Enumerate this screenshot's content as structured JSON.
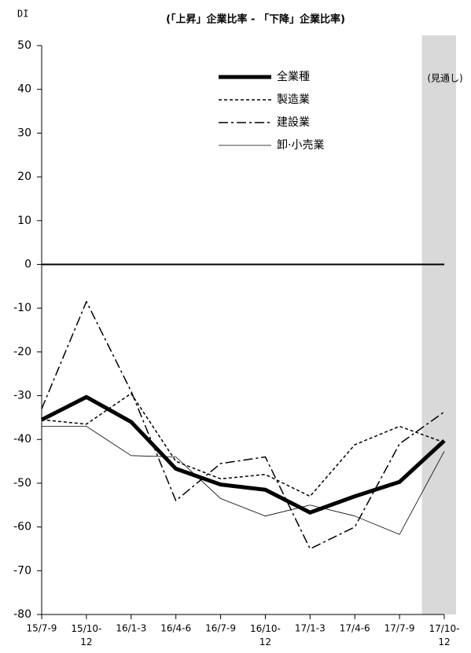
{
  "chart_data": {
    "type": "line",
    "title": "(「上昇」企業比率 - 「下降」企業比率)",
    "y_label": "DI",
    "forecast_label": "(見通し)",
    "categories": [
      "15/7-9",
      "15/10-12",
      "16/1-3",
      "16/4-6",
      "16/7-9",
      "16/10-12",
      "17/1-3",
      "17/4-6",
      "17/7-9",
      "17/10-12"
    ],
    "ylim": [
      -80,
      50
    ],
    "yticks": [
      50,
      40,
      30,
      20,
      10,
      0,
      -10,
      -20,
      -30,
      -40,
      -50,
      -60,
      -70,
      -80
    ],
    "zero_line": true,
    "forecast_color": "#d9d9d9",
    "series": [
      {
        "name": "全業種",
        "color": "#000000",
        "width": 5,
        "dash": "none",
        "values": [
          -35.5,
          -30.3,
          -36,
          -46.7,
          -50.3,
          -51.5,
          -56.7,
          -53,
          -49.7,
          -40.3
        ]
      },
      {
        "name": "製造業",
        "color": "#000000",
        "width": 1.5,
        "dash": "4 3",
        "values": [
          -35.5,
          -36.5,
          -29.5,
          -45,
          -49,
          -48,
          -53,
          -41.2,
          -37,
          -40.7
        ]
      },
      {
        "name": "建設業",
        "color": "#000000",
        "width": 1.5,
        "dash": "12 4 3 4",
        "values": [
          -33,
          -8.5,
          -29,
          -54,
          -45.5,
          -44,
          -65,
          -60,
          -41,
          -33.7
        ]
      },
      {
        "name": "卸·小売業",
        "color": "#000000",
        "width": 0.8,
        "dash": "none",
        "values": [
          -37,
          -37,
          -43.7,
          -44,
          -53.5,
          -57.5,
          -55,
          -57.5,
          -61.7,
          -42.7
        ]
      }
    ]
  }
}
